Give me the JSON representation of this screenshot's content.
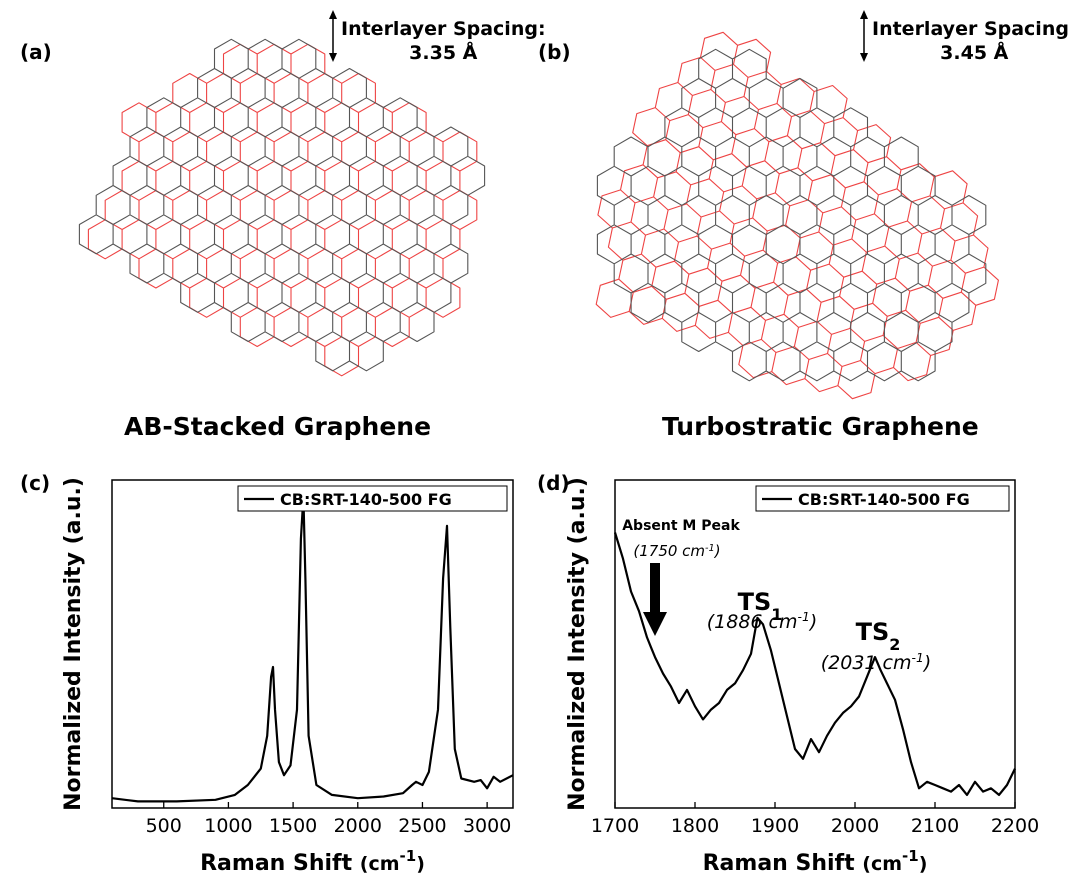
{
  "panels": {
    "a": {
      "letter": "(a)",
      "spacing_line1": "Interlayer Spacing:",
      "spacing_line2": "3.35 Å",
      "title": "AB-Stacked Graphene"
    },
    "b": {
      "letter": "(b)",
      "spacing_line1": "Interlayer Spacing:",
      "spacing_line2": "3.45 Å",
      "title": "Turbostratic Graphene"
    },
    "c": {
      "letter": "(c)"
    },
    "d": {
      "letter": "(d)"
    }
  },
  "colors": {
    "layer_top": "#555555",
    "layer_bottom": "#ee4444",
    "trace": "#000000"
  },
  "chart_data": [
    {
      "type": "line",
      "xlabel": "Raman Shift",
      "xlabel_unit": "(cm",
      "xlabel_exp": "-1",
      "xlabel_close": ")",
      "ylabel": "Normalized Intensity (a.u.)",
      "xlim": [
        100,
        3200
      ],
      "ylim": [
        0,
        1
      ],
      "x_ticks": [
        500,
        1000,
        1500,
        2000,
        2500,
        3000
      ],
      "y_ticks_shown": false,
      "legend_position": "top-right",
      "series": [
        {
          "name": "CB:SRT-140-500 FG",
          "points": [
            [
              100,
              0.03
            ],
            [
              300,
              0.02
            ],
            [
              600,
              0.02
            ],
            [
              900,
              0.025
            ],
            [
              1050,
              0.04
            ],
            [
              1150,
              0.07
            ],
            [
              1250,
              0.12
            ],
            [
              1300,
              0.22
            ],
            [
              1330,
              0.4
            ],
            [
              1345,
              0.43
            ],
            [
              1360,
              0.3
            ],
            [
              1390,
              0.14
            ],
            [
              1430,
              0.1
            ],
            [
              1480,
              0.13
            ],
            [
              1530,
              0.3
            ],
            [
              1560,
              0.82
            ],
            [
              1580,
              0.95
            ],
            [
              1595,
              0.7
            ],
            [
              1620,
              0.22
            ],
            [
              1680,
              0.07
            ],
            [
              1800,
              0.04
            ],
            [
              2000,
              0.03
            ],
            [
              2200,
              0.035
            ],
            [
              2350,
              0.045
            ],
            [
              2420,
              0.07
            ],
            [
              2450,
              0.08
            ],
            [
              2500,
              0.07
            ],
            [
              2550,
              0.11
            ],
            [
              2620,
              0.3
            ],
            [
              2660,
              0.7
            ],
            [
              2690,
              0.86
            ],
            [
              2715,
              0.55
            ],
            [
              2750,
              0.18
            ],
            [
              2800,
              0.09
            ],
            [
              2900,
              0.08
            ],
            [
              2950,
              0.085
            ],
            [
              3000,
              0.06
            ],
            [
              3050,
              0.095
            ],
            [
              3100,
              0.08
            ],
            [
              3200,
              0.1
            ]
          ]
        }
      ]
    },
    {
      "type": "line",
      "xlabel": "Raman Shift",
      "xlabel_unit": "(cm",
      "xlabel_exp": "-1",
      "xlabel_close": ")",
      "ylabel": "Normalized Intensity (a.u.)",
      "xlim": [
        1700,
        2200
      ],
      "ylim": [
        0,
        1
      ],
      "x_ticks": [
        1700,
        1800,
        1900,
        2000,
        2100,
        2200
      ],
      "y_ticks_shown": false,
      "legend_position": "top-right",
      "series": [
        {
          "name": "CB:SRT-140-500 FG",
          "points": [
            [
              1700,
              0.84
            ],
            [
              1710,
              0.76
            ],
            [
              1720,
              0.66
            ],
            [
              1730,
              0.6
            ],
            [
              1740,
              0.52
            ],
            [
              1745,
              0.49
            ],
            [
              1750,
              0.46
            ],
            [
              1760,
              0.41
            ],
            [
              1770,
              0.37
            ],
            [
              1780,
              0.32
            ],
            [
              1790,
              0.36
            ],
            [
              1800,
              0.31
            ],
            [
              1810,
              0.27
            ],
            [
              1820,
              0.3
            ],
            [
              1830,
              0.32
            ],
            [
              1840,
              0.36
            ],
            [
              1850,
              0.38
            ],
            [
              1860,
              0.42
            ],
            [
              1870,
              0.47
            ],
            [
              1878,
              0.58
            ],
            [
              1885,
              0.56
            ],
            [
              1895,
              0.48
            ],
            [
              1905,
              0.38
            ],
            [
              1915,
              0.28
            ],
            [
              1925,
              0.18
            ],
            [
              1935,
              0.15
            ],
            [
              1945,
              0.21
            ],
            [
              1955,
              0.17
            ],
            [
              1965,
              0.22
            ],
            [
              1975,
              0.26
            ],
            [
              1985,
              0.29
            ],
            [
              1995,
              0.31
            ],
            [
              2005,
              0.34
            ],
            [
              2015,
              0.4
            ],
            [
              2025,
              0.46
            ],
            [
              2032,
              0.42
            ],
            [
              2040,
              0.38
            ],
            [
              2050,
              0.33
            ],
            [
              2060,
              0.24
            ],
            [
              2070,
              0.14
            ],
            [
              2080,
              0.06
            ],
            [
              2090,
              0.08
            ],
            [
              2100,
              0.07
            ],
            [
              2110,
              0.06
            ],
            [
              2120,
              0.05
            ],
            [
              2130,
              0.07
            ],
            [
              2140,
              0.04
            ],
            [
              2150,
              0.08
            ],
            [
              2160,
              0.05
            ],
            [
              2170,
              0.06
            ],
            [
              2180,
              0.04
            ],
            [
              2190,
              0.07
            ],
            [
              2200,
              0.12
            ]
          ]
        }
      ],
      "annotations": [
        {
          "id": "absent-m-peak",
          "title": "Absent M Peak",
          "subtitle_num": "1750",
          "subtitle_unit": "cm",
          "subtitle_exp": "-1",
          "x": 1750
        },
        {
          "id": "ts1",
          "title": "TS",
          "title_sub": "1",
          "subtitle_num": "1886",
          "subtitle_unit": "cm",
          "subtitle_exp": "-1",
          "x": 1886
        },
        {
          "id": "ts2",
          "title": "TS",
          "title_sub": "2",
          "subtitle_num": "2031",
          "subtitle_unit": "cm",
          "subtitle_exp": "-1",
          "x": 2031
        }
      ]
    }
  ]
}
